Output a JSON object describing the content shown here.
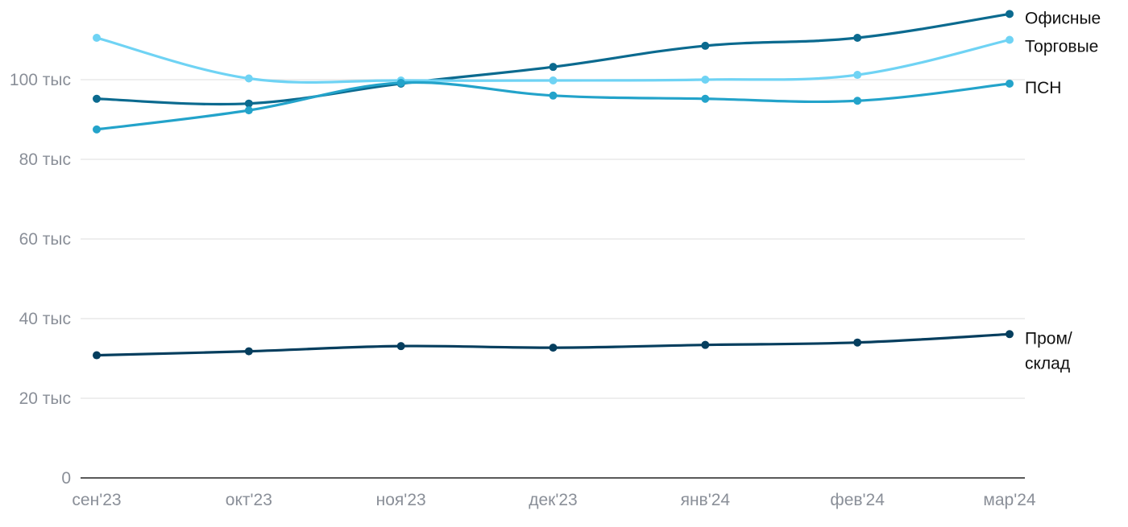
{
  "chart_data": {
    "type": "line",
    "categories": [
      "сен'23",
      "окт'23",
      "ноя'23",
      "дек'23",
      "янв'24",
      "фев'24",
      "мар'24"
    ],
    "ylim": [
      0,
      120000
    ],
    "yticks": [
      0,
      20000,
      40000,
      60000,
      80000,
      100000
    ],
    "ytick_labels": [
      "0",
      "20 тыс",
      "40 тыс",
      "60 тыс",
      "80 тыс",
      "100 тыс"
    ],
    "grid": true,
    "series": [
      {
        "name": "Офисные",
        "label_lines": [
          "Офисные"
        ],
        "color": "#0b6a8f",
        "values": [
          95200,
          94000,
          99000,
          103200,
          108500,
          110500,
          116500
        ]
      },
      {
        "name": "Торговые",
        "label_lines": [
          "Торговые"
        ],
        "color": "#6fd3f4",
        "values": [
          110500,
          100300,
          99800,
          99800,
          100000,
          101200,
          110000
        ]
      },
      {
        "name": "ПСН",
        "label_lines": [
          "ПСН"
        ],
        "color": "#23a3ca",
        "values": [
          87500,
          92300,
          99200,
          96000,
          95200,
          94700,
          99000
        ]
      },
      {
        "name": "Пром/склад",
        "label_lines": [
          "Пром/",
          "склад"
        ],
        "color": "#053e5e",
        "values": [
          30800,
          31800,
          33100,
          32700,
          33400,
          34000,
          36100
        ]
      }
    ]
  }
}
